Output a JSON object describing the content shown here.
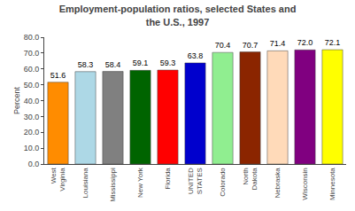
{
  "chart_data": {
    "type": "bar",
    "title": "Employment-population ratios, selected States and\nthe U.S., 1997",
    "categories": [
      "West\nVirginia",
      "Louisiana",
      "Mississippi",
      "New York",
      "Florida",
      "UNITED\nSTATES",
      "Colorado",
      "North\nDakota",
      "Nebraska",
      "Wisconsin",
      "Minnesota"
    ],
    "values": [
      51.6,
      58.3,
      58.4,
      59.1,
      59.3,
      63.8,
      70.4,
      70.7,
      71.4,
      72.0,
      72.1
    ],
    "value_labels": [
      "51.6",
      "58.3",
      "58.4",
      "59.1",
      "59.3",
      "63.8",
      "70.4",
      "70.7",
      "71.4",
      "72.0",
      "72.1"
    ],
    "data_labels": true,
    "colors": [
      "#FF8C00",
      "#ADD8E6",
      "#808080",
      "#006400",
      "#FF0000",
      "#0000CD",
      "#90EE90",
      "#8B2500",
      "#FFDAB9",
      "#800080",
      "#FFFF00"
    ],
    "ylabel": "Percent",
    "ylim": [
      0,
      80
    ],
    "yticks": [
      {
        "value": 0,
        "label": "0.0"
      },
      {
        "value": 10,
        "label": "10.0"
      },
      {
        "value": 20,
        "label": "20.0"
      },
      {
        "value": 30,
        "label": "30.0"
      },
      {
        "value": 40,
        "label": "40.0"
      },
      {
        "value": 50,
        "label": "50.0"
      },
      {
        "value": 60,
        "label": "60.0"
      },
      {
        "value": 70,
        "label": "70.0"
      },
      {
        "value": 80,
        "label": "80.0"
      }
    ],
    "grid": false
  }
}
